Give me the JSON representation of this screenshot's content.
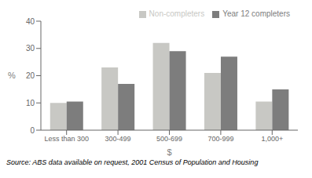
{
  "chart_data": {
    "type": "bar",
    "xlabel": "$",
    "ylabel": "%",
    "annotations": [
      "Source: ABS data available on request,  2001 Census of Population and Housing"
    ],
    "categories": [
      "Less than 300",
      "300-499",
      "500-699",
      "700-999",
      "1,000+"
    ],
    "series": [
      {
        "name": "Non-completers",
        "color": "#c8c8c4",
        "values": [
          10,
          23,
          32,
          21,
          10.5
        ]
      },
      {
        "name": "Year 12 completers",
        "color": "#7d7d7d",
        "values": [
          10.5,
          17,
          29,
          27,
          15
        ]
      }
    ],
    "ylim": [
      0,
      40
    ],
    "yticks": [
      0,
      10,
      20,
      30,
      40
    ],
    "legend": "upper right"
  }
}
